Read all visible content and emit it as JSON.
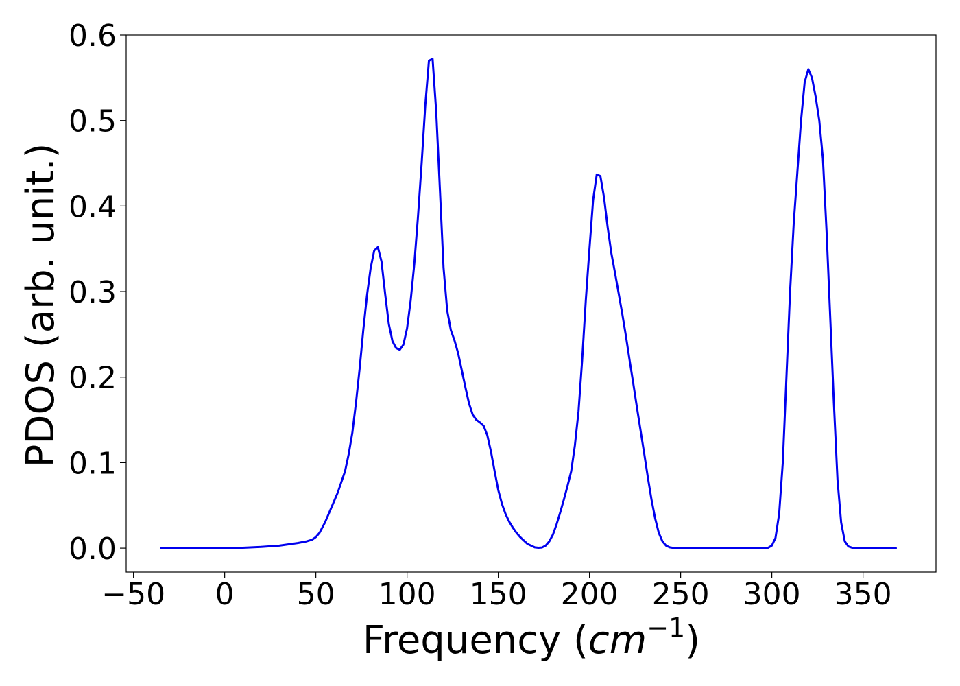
{
  "chart_data": {
    "type": "line",
    "title": "",
    "xlabel": "Frequency (",
    "xlabel_math": "cm",
    "xlabel_sup": "−1",
    "xlabel_end": ")",
    "ylabel": "PDOS (arb. unit.)",
    "xlim": [
      -54,
      390
    ],
    "ylim": [
      -0.028,
      0.6
    ],
    "xticks": [
      -50,
      0,
      50,
      100,
      150,
      200,
      250,
      300,
      350
    ],
    "xtick_labels": [
      "−50",
      "0",
      "50",
      "100",
      "150",
      "200",
      "250",
      "300",
      "350"
    ],
    "yticks": [
      0.0,
      0.1,
      0.2,
      0.3,
      0.4,
      0.5,
      0.6
    ],
    "ytick_labels": [
      "0.0",
      "0.1",
      "0.2",
      "0.3",
      "0.4",
      "0.5",
      "0.6"
    ],
    "grid": false,
    "legend": "none",
    "series": [
      {
        "color": "#0000ee",
        "x": [
          -35,
          0,
          10,
          20,
          30,
          40,
          45,
          48,
          50,
          52,
          55,
          58,
          62,
          66,
          68,
          70,
          72,
          74,
          76,
          78,
          80,
          82,
          84,
          86,
          88,
          90,
          92,
          94,
          96,
          98,
          100,
          102,
          104,
          106,
          108,
          110,
          112,
          114,
          116,
          118,
          120,
          122,
          124,
          126,
          128,
          130,
          132,
          134,
          136,
          138,
          140,
          142,
          144,
          146,
          148,
          150,
          152,
          154,
          156,
          158,
          160,
          162,
          164,
          166,
          168,
          170,
          172,
          174,
          176,
          178,
          180,
          182,
          184,
          186,
          188,
          190,
          192,
          194,
          196,
          198,
          200,
          202,
          204,
          206,
          208,
          210,
          212,
          214,
          216,
          218,
          220,
          222,
          224,
          226,
          228,
          230,
          232,
          234,
          236,
          238,
          240,
          242,
          244,
          246,
          250,
          260,
          270,
          280,
          290,
          296,
          298,
          300,
          302,
          304,
          306,
          308,
          310,
          312,
          314,
          316,
          318,
          320,
          322,
          324,
          326,
          328,
          330,
          332,
          334,
          336,
          338,
          340,
          342,
          344,
          346,
          350,
          360,
          368
        ],
        "y": [
          0.0,
          0.0,
          0.0005,
          0.0015,
          0.003,
          0.006,
          0.008,
          0.01,
          0.013,
          0.018,
          0.03,
          0.045,
          0.065,
          0.09,
          0.11,
          0.135,
          0.17,
          0.21,
          0.255,
          0.295,
          0.327,
          0.348,
          0.352,
          0.335,
          0.297,
          0.262,
          0.242,
          0.234,
          0.232,
          0.238,
          0.257,
          0.29,
          0.333,
          0.388,
          0.45,
          0.518,
          0.57,
          0.572,
          0.51,
          0.42,
          0.328,
          0.278,
          0.255,
          0.243,
          0.228,
          0.208,
          0.188,
          0.169,
          0.156,
          0.15,
          0.147,
          0.143,
          0.132,
          0.113,
          0.09,
          0.068,
          0.052,
          0.04,
          0.031,
          0.024,
          0.018,
          0.013,
          0.009,
          0.005,
          0.003,
          0.001,
          0.0005,
          0.0008,
          0.003,
          0.008,
          0.016,
          0.028,
          0.042,
          0.057,
          0.073,
          0.09,
          0.12,
          0.16,
          0.22,
          0.29,
          0.35,
          0.407,
          0.437,
          0.435,
          0.41,
          0.375,
          0.345,
          0.322,
          0.298,
          0.274,
          0.248,
          0.22,
          0.193,
          0.165,
          0.138,
          0.111,
          0.083,
          0.057,
          0.035,
          0.018,
          0.008,
          0.003,
          0.001,
          0.0003,
          0.0,
          0.0,
          0.0,
          0.0,
          0.0,
          0.0,
          0.0005,
          0.003,
          0.012,
          0.04,
          0.1,
          0.2,
          0.3,
          0.38,
          0.44,
          0.5,
          0.545,
          0.56,
          0.55,
          0.528,
          0.5,
          0.455,
          0.37,
          0.27,
          0.17,
          0.08,
          0.03,
          0.008,
          0.002,
          0.0005,
          0.0,
          0.0,
          0.0,
          0.0
        ]
      }
    ]
  }
}
